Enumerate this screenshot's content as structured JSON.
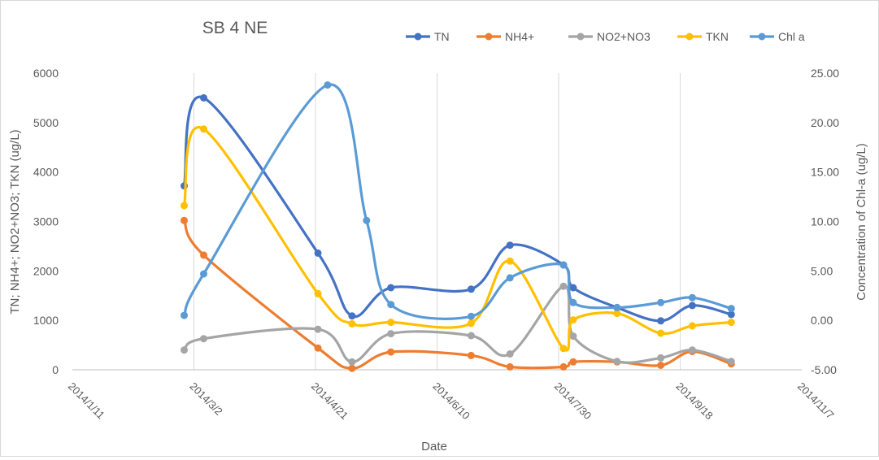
{
  "chart_data": {
    "type": "line",
    "title": "SB 4 NE",
    "xlabel": "Date",
    "ylabel": "TN; NH4+; NO2+NO3; TKN (ug/L)",
    "y2label": "Concentration of Chl-a (ug/L)",
    "xlim": [
      "2014-01-11",
      "2014-11-07"
    ],
    "x_ticks": [
      "2014/1/11",
      "2014/3/2",
      "2014/4/21",
      "2014/6/10",
      "2014/7/30",
      "2014/9/18",
      "2014/11/7"
    ],
    "ylim": [
      0,
      6000
    ],
    "y_ticks": [
      "0",
      "1000",
      "2000",
      "3000",
      "4000",
      "5000",
      "6000"
    ],
    "y2lim": [
      -5,
      25
    ],
    "y2_ticks": [
      "-5.00",
      "0.00",
      "5.00",
      "10.00",
      "15.00",
      "20.00",
      "25.00"
    ],
    "grid": "vertical",
    "legend": "top-right",
    "series": [
      {
        "name": "TN",
        "color": "#4472c4",
        "axis": "left",
        "points": [
          [
            "2014-02-26",
            3720
          ],
          [
            "2014-03-06",
            5500
          ],
          [
            "2014-04-22",
            2360
          ],
          [
            "2014-05-06",
            1090
          ],
          [
            "2014-05-22",
            1660
          ],
          [
            "2014-06-24",
            1630
          ],
          [
            "2014-07-10",
            2520
          ],
          [
            "2014-08-01",
            2120
          ],
          [
            "2014-08-05",
            1660
          ],
          [
            "2014-08-23",
            1260
          ],
          [
            "2014-09-10",
            990
          ],
          [
            "2014-09-23",
            1300
          ],
          [
            "2014-10-09",
            1120
          ]
        ]
      },
      {
        "name": "NH4+",
        "color": "#ed7d31",
        "axis": "left",
        "points": [
          [
            "2014-02-26",
            3020
          ],
          [
            "2014-03-06",
            2320
          ],
          [
            "2014-04-22",
            440
          ],
          [
            "2014-05-06",
            30
          ],
          [
            "2014-05-22",
            360
          ],
          [
            "2014-06-24",
            290
          ],
          [
            "2014-07-10",
            60
          ],
          [
            "2014-08-01",
            60
          ],
          [
            "2014-08-05",
            160
          ],
          [
            "2014-08-23",
            160
          ],
          [
            "2014-09-10",
            90
          ],
          [
            "2014-09-23",
            370
          ],
          [
            "2014-10-09",
            120
          ]
        ]
      },
      {
        "name": "NO2+NO3",
        "color": "#a5a5a5",
        "axis": "left",
        "points": [
          [
            "2014-02-26",
            400
          ],
          [
            "2014-03-06",
            630
          ],
          [
            "2014-04-22",
            820
          ],
          [
            "2014-05-06",
            160
          ],
          [
            "2014-05-22",
            730
          ],
          [
            "2014-06-24",
            690
          ],
          [
            "2014-07-10",
            320
          ],
          [
            "2014-08-01",
            1690
          ],
          [
            "2014-08-05",
            680
          ],
          [
            "2014-08-23",
            170
          ],
          [
            "2014-09-10",
            240
          ],
          [
            "2014-09-23",
            400
          ],
          [
            "2014-10-09",
            170
          ]
        ]
      },
      {
        "name": "TKN",
        "color": "#ffc000",
        "axis": "left",
        "points": [
          [
            "2014-02-26",
            3320
          ],
          [
            "2014-03-06",
            4870
          ],
          [
            "2014-04-22",
            1540
          ],
          [
            "2014-05-06",
            930
          ],
          [
            "2014-05-22",
            960
          ],
          [
            "2014-06-24",
            940
          ],
          [
            "2014-07-10",
            2200
          ],
          [
            "2014-08-01",
            430
          ],
          [
            "2014-08-05",
            1010
          ],
          [
            "2014-08-23",
            1140
          ],
          [
            "2014-09-10",
            740
          ],
          [
            "2014-09-23",
            890
          ],
          [
            "2014-10-09",
            960
          ]
        ]
      },
      {
        "name": "Chl a",
        "color": "#5b9bd5",
        "axis": "right",
        "points": [
          [
            "2014-02-26",
            0.5
          ],
          [
            "2014-03-06",
            4.7
          ],
          [
            "2014-04-26",
            23.8
          ],
          [
            "2014-05-12",
            10.1
          ],
          [
            "2014-05-22",
            1.6
          ],
          [
            "2014-06-24",
            0.4
          ],
          [
            "2014-07-10",
            4.3
          ],
          [
            "2014-08-01",
            5.6
          ],
          [
            "2014-08-05",
            1.8
          ],
          [
            "2014-08-23",
            1.3
          ],
          [
            "2014-09-10",
            1.8
          ],
          [
            "2014-09-23",
            2.3
          ],
          [
            "2014-10-09",
            1.2
          ]
        ]
      }
    ]
  }
}
